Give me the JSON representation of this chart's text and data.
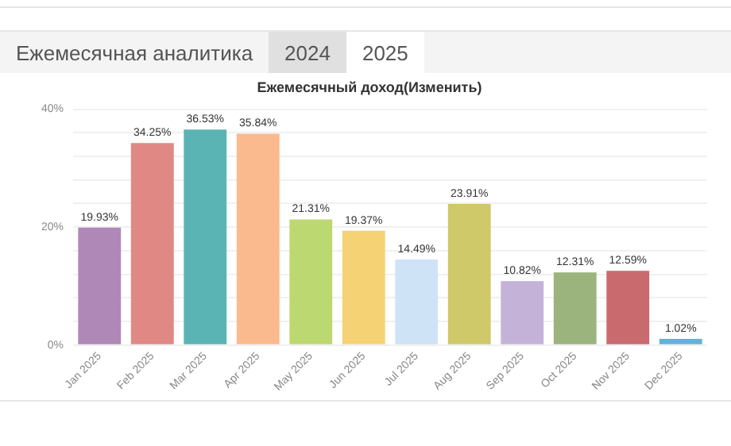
{
  "chart_data": {
    "type": "bar",
    "title": "Ежемесячная аналитика",
    "subtitle": "Ежемесячный доход(Изменить)",
    "annotations": [
      "2024",
      "2025"
    ],
    "categories": [
      "Jan 2025",
      "Feb 2025",
      "Mar 2025",
      "Apr 2025",
      "May 2025",
      "Jun 2025",
      "Jul 2025",
      "Aug 2025",
      "Sep 2025",
      "Oct 2025",
      "Nov 2025",
      "Dec 2025"
    ],
    "values": [
      19.93,
      34.25,
      36.53,
      35.84,
      21.31,
      19.37,
      14.49,
      23.91,
      10.82,
      12.31,
      12.59,
      1.02
    ],
    "colors": [
      "#b088b8",
      "#e08884",
      "#5ab4b4",
      "#fbb98e",
      "#bcd870",
      "#f5d274",
      "#cfe3f6",
      "#d0c96a",
      "#c5b2d9",
      "#9bb47d",
      "#c96a6e",
      "#5fb3dd"
    ],
    "value_labels": [
      "19.93%",
      "34.25%",
      "36.53%",
      "35.84%",
      "21.31%",
      "19.37%",
      "14.49%",
      "23.91%",
      "10.82%",
      "12.31%",
      "12.59%",
      "1.02%"
    ],
    "ylim": [
      0,
      40
    ],
    "yticks": [
      {
        "value": 0,
        "label": "0%"
      },
      {
        "value": 4,
        "label": null
      },
      {
        "value": 8,
        "label": null
      },
      {
        "value": 12,
        "label": null
      },
      {
        "value": 16,
        "label": null
      },
      {
        "value": 20,
        "label": "20%"
      },
      {
        "value": 24,
        "label": null
      },
      {
        "value": 28,
        "label": null
      },
      {
        "value": 32,
        "label": null
      },
      {
        "value": 36,
        "label": null
      },
      {
        "value": 40,
        "label": "40%"
      }
    ],
    "grid": "y",
    "legend": false
  }
}
